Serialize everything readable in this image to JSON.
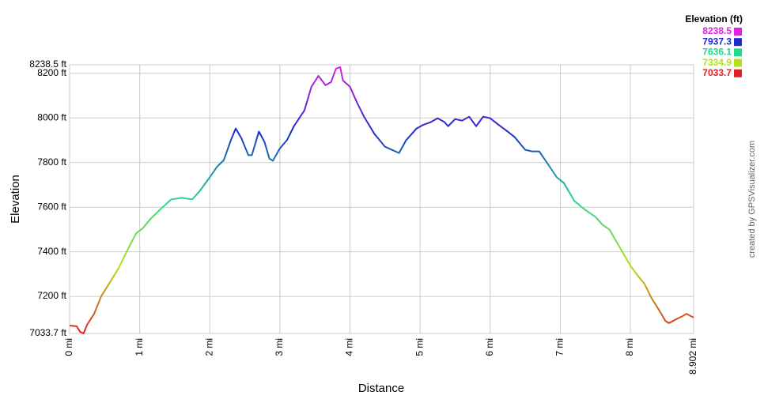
{
  "chart_data": {
    "type": "line",
    "x_label": "Distance",
    "y_label": "Elevation",
    "legend_title": "Elevation (ft)",
    "credit": "created by GPSVisualizer.com",
    "color_scale": [
      {
        "value": 8238.5,
        "color": "#e020e0"
      },
      {
        "value": 7937.3,
        "color": "#1a2ccc"
      },
      {
        "value": 7636.1,
        "color": "#22d88a"
      },
      {
        "value": 7334.9,
        "color": "#b4e01a"
      },
      {
        "value": 7033.7,
        "color": "#dd2222"
      }
    ],
    "x": [
      0,
      0.1,
      0.15,
      0.2,
      0.25,
      0.35,
      0.45,
      0.55,
      0.7,
      0.85,
      0.95,
      1.05,
      1.15,
      1.3,
      1.45,
      1.6,
      1.75,
      1.85,
      2.0,
      2.1,
      2.2,
      2.3,
      2.37,
      2.45,
      2.55,
      2.6,
      2.7,
      2.78,
      2.85,
      2.9,
      3.0,
      3.1,
      3.2,
      3.35,
      3.45,
      3.55,
      3.65,
      3.73,
      3.8,
      3.86,
      3.9,
      4.0,
      4.1,
      4.2,
      4.35,
      4.5,
      4.6,
      4.7,
      4.8,
      4.95,
      5.05,
      5.15,
      5.25,
      5.35,
      5.4,
      5.5,
      5.6,
      5.7,
      5.8,
      5.9,
      6.0,
      6.1,
      6.25,
      6.35,
      6.5,
      6.6,
      6.7,
      6.8,
      6.95,
      7.05,
      7.2,
      7.35,
      7.5,
      7.6,
      7.7,
      7.85,
      8.0,
      8.1,
      8.2,
      8.3,
      8.4,
      8.5,
      8.55,
      8.65,
      8.75,
      8.8,
      8.902
    ],
    "series": [
      {
        "name": "Elevation",
        "values": [
          7069,
          7066,
          7041,
          7034,
          7073,
          7122,
          7200,
          7250,
          7327,
          7423,
          7483,
          7507,
          7546,
          7592,
          7635,
          7642,
          7635,
          7670,
          7734,
          7780,
          7811,
          7900,
          7953,
          7910,
          7833,
          7833,
          7939,
          7893,
          7818,
          7808,
          7864,
          7900,
          7963,
          8034,
          8140,
          8189,
          8147,
          8161,
          8221,
          8228,
          8168,
          8140,
          8069,
          8006,
          7928,
          7871,
          7857,
          7843,
          7900,
          7953,
          7970,
          7981,
          7999,
          7981,
          7963,
          7995,
          7988,
          8006,
          7963,
          8006,
          7999,
          7974,
          7939,
          7914,
          7857,
          7850,
          7850,
          7804,
          7734,
          7709,
          7628,
          7589,
          7557,
          7522,
          7500,
          7419,
          7338,
          7295,
          7257,
          7193,
          7143,
          7090,
          7080,
          7097,
          7112,
          7122,
          7105
        ]
      }
    ],
    "xlim": [
      0,
      8.902
    ],
    "xticks": [
      {
        "value": 0,
        "label": "0 mi"
      },
      {
        "value": 1,
        "label": "1 mi"
      },
      {
        "value": 2,
        "label": "2 mi"
      },
      {
        "value": 3,
        "label": "3 mi"
      },
      {
        "value": 4,
        "label": "4 mi"
      },
      {
        "value": 5,
        "label": "5 mi"
      },
      {
        "value": 6,
        "label": "6 mi"
      },
      {
        "value": 7,
        "label": "7 mi"
      },
      {
        "value": 8,
        "label": "8 mi"
      },
      {
        "value": 8.902,
        "label": "8.902 mi"
      }
    ],
    "ylim": [
      7033.7,
      8238.5
    ],
    "yticks": [
      {
        "value": 7033.7,
        "label": "7033.7 ft"
      },
      {
        "value": 7200,
        "label": "7200 ft"
      },
      {
        "value": 7400,
        "label": "7400 ft"
      },
      {
        "value": 7600,
        "label": "7600 ft"
      },
      {
        "value": 7800,
        "label": "7800 ft"
      },
      {
        "value": 8000,
        "label": "8000 ft"
      },
      {
        "value": 8200,
        "label": "8200 ft"
      },
      {
        "value": 8238.5,
        "label": "8238.5 ft"
      }
    ],
    "grid": true
  }
}
